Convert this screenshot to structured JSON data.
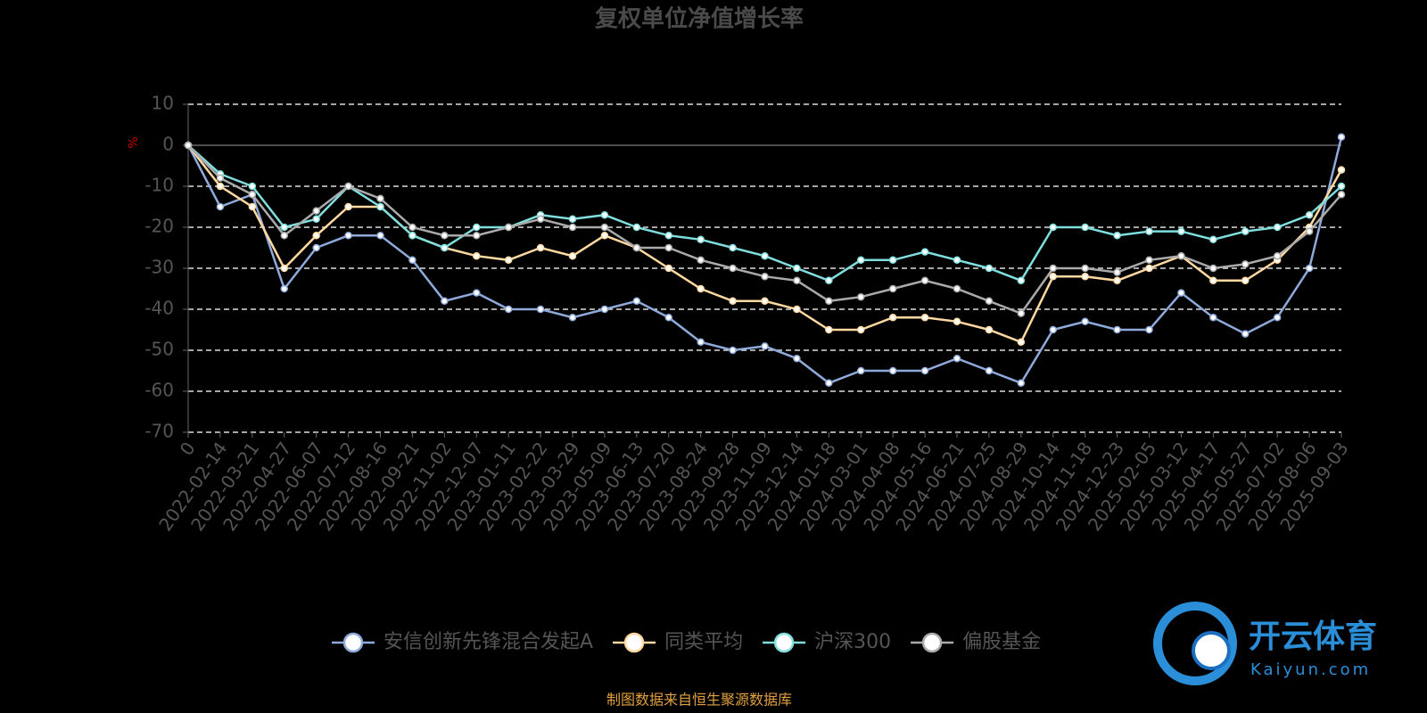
{
  "chart_data": {
    "type": "line",
    "title": "复权单位净值增长率",
    "y_label": "%",
    "source": "制图数据来自恒生聚源数据库",
    "categories": [
      "0",
      "2022-02-14",
      "2022-03-21",
      "2022-04-27",
      "2022-06-07",
      "2022-07-12",
      "2022-08-16",
      "2022-09-21",
      "2022-11-02",
      "2022-12-07",
      "2023-01-11",
      "2023-02-22",
      "2023-03-29",
      "2023-05-09",
      "2023-06-13",
      "2023-07-20",
      "2023-08-24",
      "2023-09-28",
      "2023-11-09",
      "2023-12-14",
      "2024-01-18",
      "2024-03-01",
      "2024-04-08",
      "2024-05-16",
      "2024-06-21",
      "2024-07-25",
      "2024-08-29",
      "2024-10-14",
      "2024-11-18",
      "2024-12-23",
      "2025-02-05",
      "2025-03-12",
      "2025-04-17",
      "2025-05-27",
      "2025-07-02",
      "2025-08-06",
      "2025-09-03"
    ],
    "series": [
      {
        "name": "安信创新先锋混合发起A",
        "color": "#8eaadb",
        "values": [
          0,
          -15,
          -12,
          -35,
          -25,
          -22,
          -22,
          -28,
          -38,
          -36,
          -40,
          -40,
          -42,
          -40,
          -38,
          -42,
          -48,
          -50,
          -49,
          -52,
          -58,
          -55,
          -55,
          -55,
          -52,
          -55,
          -58,
          -45,
          -43,
          -45,
          -45,
          -36,
          -42,
          -46,
          -42,
          -30,
          2
        ]
      },
      {
        "name": "同类平均",
        "color": "#ffd9a0",
        "values": [
          0,
          -10,
          -15,
          -30,
          -22,
          -15,
          -15,
          -22,
          -25,
          -27,
          -28,
          -25,
          -27,
          -22,
          -25,
          -30,
          -35,
          -38,
          -38,
          -40,
          -45,
          -45,
          -42,
          -42,
          -43,
          -45,
          -48,
          -32,
          -32,
          -33,
          -30,
          -27,
          -33,
          -33,
          -28,
          -20,
          -6
        ]
      },
      {
        "name": "沪深300",
        "color": "#7fdede",
        "values": [
          0,
          -7,
          -10,
          -20,
          -18,
          -10,
          -15,
          -22,
          -25,
          -20,
          -20,
          -17,
          -18,
          -17,
          -20,
          -22,
          -23,
          -25,
          -27,
          -30,
          -33,
          -28,
          -28,
          -26,
          -28,
          -30,
          -33,
          -20,
          -20,
          -22,
          -21,
          -21,
          -23,
          -21,
          -20,
          -17,
          -10
        ]
      },
      {
        "name": "偏股基金",
        "color": "#aaaaaa",
        "values": [
          0,
          -8,
          -12,
          -22,
          -16,
          -10,
          -13,
          -20,
          -22,
          -22,
          -20,
          -18,
          -20,
          -20,
          -25,
          -25,
          -28,
          -30,
          -32,
          -33,
          -38,
          -37,
          -35,
          -33,
          -35,
          -38,
          -41,
          -30,
          -30,
          -31,
          -28,
          -27,
          -30,
          -29,
          -27,
          -21,
          -12
        ]
      }
    ],
    "ylim": [
      -70,
      10
    ],
    "yticks": [
      10,
      0,
      -10,
      -20,
      -30,
      -40,
      -50,
      -60,
      -70
    ],
    "grid": true
  },
  "watermark": {
    "title": "开云体育",
    "url": "Kaiyun.com"
  }
}
